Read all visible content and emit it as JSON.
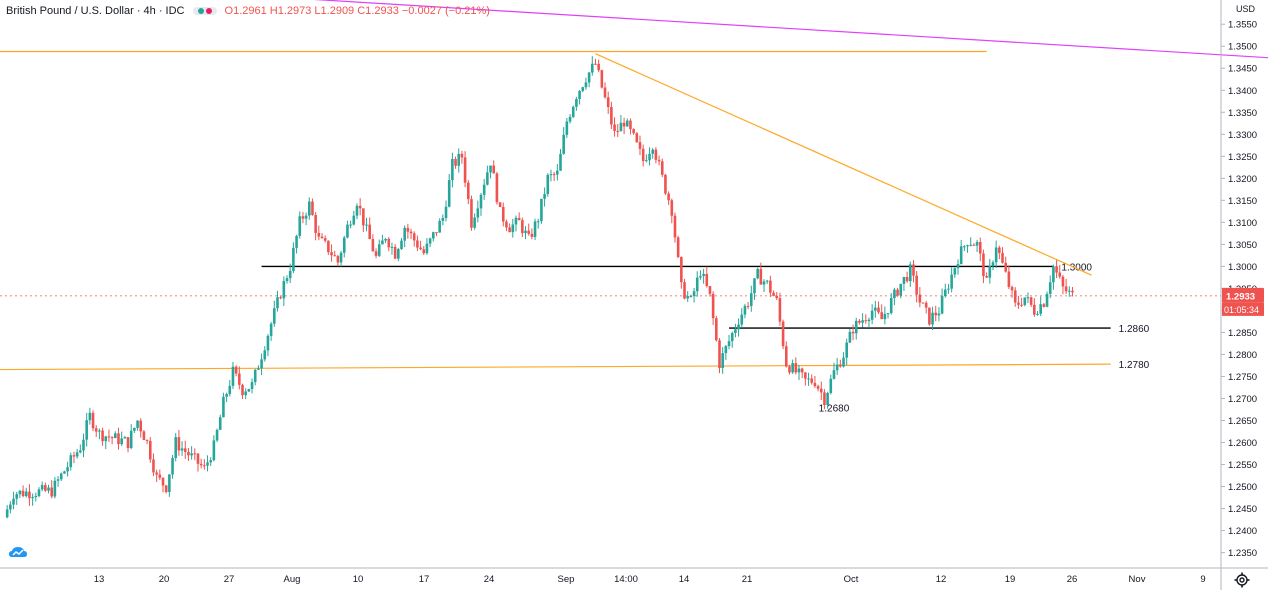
{
  "header": {
    "symbol": "British Pound / U.S. Dollar · 4h · IDC",
    "ohlc": "O1.2961 H1.2973 L1.2909 C1.2933 −0.0027 (−0.21%)",
    "currency": "USD"
  },
  "price_badge": {
    "value": "1.2933",
    "countdown": "01:05:34",
    "color": "#ef5350"
  },
  "icons": {
    "settings": "gear-icon",
    "logo": "cloud-logo-icon"
  },
  "chart_data": {
    "type": "candlestick",
    "yaxis": {
      "ticks": [
        "1.2350",
        "1.2400",
        "1.2450",
        "1.2500",
        "1.2550",
        "1.2600",
        "1.2650",
        "1.2700",
        "1.2750",
        "1.2800",
        "1.2850",
        "1.2900",
        "1.2950",
        "1.3000",
        "1.3050",
        "1.3100",
        "1.3150",
        "1.3200",
        "1.3250",
        "1.3300",
        "1.3350",
        "1.3400",
        "1.3450",
        "1.3500",
        "1.3550"
      ],
      "range": [
        1.2315,
        1.3605
      ]
    },
    "xaxis": {
      "ticks": [
        "13",
        "20",
        "27",
        "Aug",
        "10",
        "17",
        "24",
        "Sep",
        "14:00",
        "14",
        "21",
        "Oct",
        "12",
        "19",
        "26",
        "Nov",
        "9"
      ]
    },
    "up_color": "#26a69a",
    "down_color": "#ef5350",
    "path_points": [
      {
        "x": "Jul 1",
        "y": 1.243
      },
      {
        "x": "Jul 2",
        "y": 1.2485
      },
      {
        "x": "Jul 6",
        "y": 1.249
      },
      {
        "x": "Jul 7",
        "y": 1.2525
      },
      {
        "x": "Jul 9",
        "y": 1.259
      },
      {
        "x": "Jul 10",
        "y": 1.266
      },
      {
        "x": "Jul 11",
        "y": 1.262
      },
      {
        "x": "Jul 14",
        "y": 1.26
      },
      {
        "x": "Jul 15",
        "y": 1.265
      },
      {
        "x": "Jul 16",
        "y": 1.26
      },
      {
        "x": "Jul 17",
        "y": 1.252
      },
      {
        "x": "Jul 18",
        "y": 1.25
      },
      {
        "x": "Jul 19",
        "y": 1.26
      },
      {
        "x": "Jul 20",
        "y": 1.258
      },
      {
        "x": "Jul 21",
        "y": 1.256
      },
      {
        "x": "Jul 22",
        "y": 1.254
      },
      {
        "x": "Jul 23",
        "y": 1.259
      },
      {
        "x": "Jul 24",
        "y": 1.269
      },
      {
        "x": "Jul 25",
        "y": 1.276
      },
      {
        "x": "Jul 26",
        "y": 1.272
      },
      {
        "x": "Jul 27",
        "y": 1.273
      },
      {
        "x": "Jul 28",
        "y": 1.28
      },
      {
        "x": "Jul 29",
        "y": 1.287
      },
      {
        "x": "Jul 30",
        "y": 1.294
      },
      {
        "x": "Jul 31",
        "y": 1.3
      },
      {
        "x": "Aug 1",
        "y": 1.31
      },
      {
        "x": "Aug 2",
        "y": 1.314
      },
      {
        "x": "Aug 3",
        "y": 1.306
      },
      {
        "x": "Aug 4",
        "y": 1.304
      },
      {
        "x": "Aug 5",
        "y": 1.301
      },
      {
        "x": "Aug 6",
        "y": 1.309
      },
      {
        "x": "Aug 7",
        "y": 1.315
      },
      {
        "x": "Aug 8",
        "y": 1.308
      },
      {
        "x": "Aug 9",
        "y": 1.302
      },
      {
        "x": "Aug 10",
        "y": 1.307
      },
      {
        "x": "Aug 11",
        "y": 1.303
      },
      {
        "x": "Aug 12",
        "y": 1.309
      },
      {
        "x": "Aug 13",
        "y": 1.306
      },
      {
        "x": "Aug 14",
        "y": 1.303
      },
      {
        "x": "Aug 15",
        "y": 1.307
      },
      {
        "x": "Aug 16",
        "y": 1.311
      },
      {
        "x": "Aug 17",
        "y": 1.323
      },
      {
        "x": "Aug 18",
        "y": 1.325
      },
      {
        "x": "Aug 19",
        "y": 1.31
      },
      {
        "x": "Aug 20",
        "y": 1.317
      },
      {
        "x": "Aug 21",
        "y": 1.324
      },
      {
        "x": "Aug 22",
        "y": 1.312
      },
      {
        "x": "Aug 23",
        "y": 1.309
      },
      {
        "x": "Aug 24",
        "y": 1.31
      },
      {
        "x": "Aug 25",
        "y": 1.306
      },
      {
        "x": "Aug 26",
        "y": 1.311
      },
      {
        "x": "Aug 27",
        "y": 1.32
      },
      {
        "x": "Aug 28",
        "y": 1.321
      },
      {
        "x": "Aug 29",
        "y": 1.333
      },
      {
        "x": "Aug 30",
        "y": 1.339
      },
      {
        "x": "Aug 31",
        "y": 1.343
      },
      {
        "x": "Sep 1",
        "y": 1.346
      },
      {
        "x": "Sep 2",
        "y": 1.338
      },
      {
        "x": "Sep 3",
        "y": 1.33
      },
      {
        "x": "Sep 4",
        "y": 1.333
      },
      {
        "x": "Sep 5",
        "y": 1.329
      },
      {
        "x": "Sep 6",
        "y": 1.324
      },
      {
        "x": "Sep 7",
        "y": 1.328
      },
      {
        "x": "Sep 8",
        "y": 1.32
      },
      {
        "x": "Sep 9",
        "y": 1.313
      },
      {
        "x": "Sep 10",
        "y": 1.295
      },
      {
        "x": "Sep 11",
        "y": 1.292
      },
      {
        "x": "Sep 12",
        "y": 1.299
      },
      {
        "x": "Sep 13",
        "y": 1.293
      },
      {
        "x": "Sep 14",
        "y": 1.278
      },
      {
        "x": "Sep 15",
        "y": 1.283
      },
      {
        "x": "Sep 16",
        "y": 1.288
      },
      {
        "x": "Sep 17",
        "y": 1.292
      },
      {
        "x": "Sep 18",
        "y": 1.298
      },
      {
        "x": "Sep 19",
        "y": 1.296
      },
      {
        "x": "Sep 20",
        "y": 1.292
      },
      {
        "x": "Sep 21",
        "y": 1.278
      },
      {
        "x": "Sep 22",
        "y": 1.276
      },
      {
        "x": "Sep 23",
        "y": 1.274
      },
      {
        "x": "Sep 24",
        "y": 1.274
      },
      {
        "x": "Sep 25",
        "y": 1.27
      },
      {
        "x": "Sep 26",
        "y": 1.276
      },
      {
        "x": "Sep 27",
        "y": 1.28
      },
      {
        "x": "Sep 28",
        "y": 1.286
      },
      {
        "x": "Sep 29",
        "y": 1.288
      },
      {
        "x": "Sep 30",
        "y": 1.29
      },
      {
        "x": "Oct 1",
        "y": 1.288
      },
      {
        "x": "Oct 2",
        "y": 1.292
      },
      {
        "x": "Oct 3",
        "y": 1.296
      },
      {
        "x": "Oct 4",
        "y": 1.299
      },
      {
        "x": "Oct 5",
        "y": 1.292
      },
      {
        "x": "Oct 6",
        "y": 1.288
      },
      {
        "x": "Oct 7",
        "y": 1.29
      },
      {
        "x": "Oct 8",
        "y": 1.296
      },
      {
        "x": "Oct 9",
        "y": 1.302
      },
      {
        "x": "Oct 10",
        "y": 1.306
      },
      {
        "x": "Oct 11",
        "y": 1.305
      },
      {
        "x": "Oct 12",
        "y": 1.296
      },
      {
        "x": "Oct 13",
        "y": 1.305
      },
      {
        "x": "Oct 14",
        "y": 1.298
      },
      {
        "x": "Oct 15",
        "y": 1.291
      },
      {
        "x": "Oct 16",
        "y": 1.293
      },
      {
        "x": "Oct 17",
        "y": 1.29
      },
      {
        "x": "Oct 18",
        "y": 1.292
      },
      {
        "x": "Oct 19",
        "y": 1.3
      },
      {
        "x": "Oct 20",
        "y": 1.295
      },
      {
        "x": "Oct 21",
        "y": 1.2933
      }
    ],
    "annotations": {
      "horizontal_lines": [
        {
          "label": "1.3000",
          "value": 1.3,
          "from": "Jul 28",
          "to": "Oct 19",
          "color": "#000000"
        },
        {
          "label": "1.2860",
          "value": 1.286,
          "from": "Sep 15",
          "to": "Oct 25",
          "color": "#000000"
        },
        {
          "label": "",
          "value": 1.3488,
          "from": "Jun 24",
          "to": "Oct 12",
          "color": "#ffa726"
        }
      ],
      "trend_lines": [
        {
          "from": {
            "x": "Sep 1",
            "y": 1.3483
          },
          "to": {
            "x": "Oct 23",
            "y": 1.298
          },
          "color": "#ffa726"
        },
        {
          "from": {
            "x": "Jun 24",
            "y": 1.2765
          },
          "to": {
            "x": "Oct 25",
            "y": 1.2778
          },
          "color": "#ffa726",
          "label": "1.2780"
        },
        {
          "from": {
            "x": "Jul 8",
            "y": 1.364
          },
          "to": {
            "x": "Nov 15",
            "y": 1.3468
          },
          "color": "#e040fb"
        }
      ],
      "price_labels": [
        {
          "label": "1.2680",
          "x": "Sep 26",
          "y": 1.268
        }
      ]
    }
  }
}
